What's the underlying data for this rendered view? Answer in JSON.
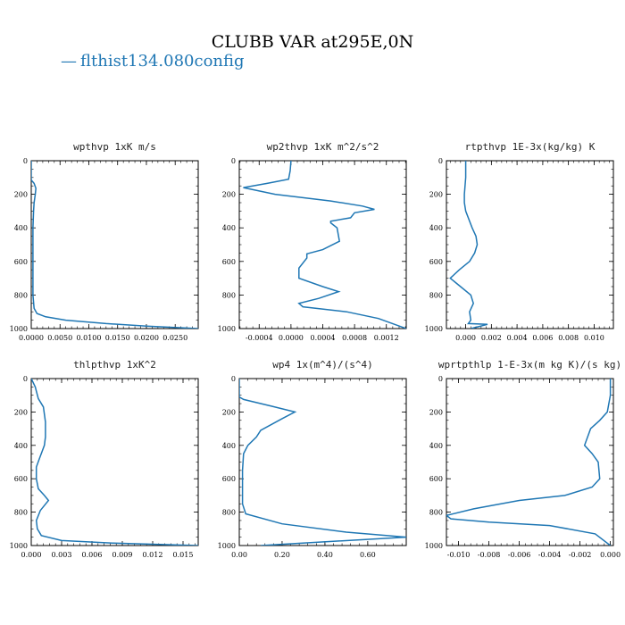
{
  "title": "CLUBB VAR at295E,0N",
  "legend": {
    "label": "flthist134.080config",
    "color": "#1f77b4"
  },
  "chart_data": [
    {
      "type": "line",
      "title": "wpthvp  1xK m/s",
      "xlim": [
        0,
        0.029
      ],
      "ylim": [
        1000,
        0
      ],
      "xticks": [
        0,
        0.005,
        0.01,
        0.015,
        0.02,
        0.025
      ],
      "xticklabels": [
        "0.0000",
        "0.0050",
        "0.0100",
        "0.0150",
        "0.0200",
        "0.0250"
      ],
      "yticks": [
        0,
        200,
        400,
        600,
        800,
        1000
      ],
      "x": [
        0,
        0,
        0.0005,
        0.0008,
        0.0007,
        0.0005,
        0.0004,
        0.0003,
        0.0003,
        0.0003,
        0.0003,
        0.0003,
        0.0005,
        0.001,
        0.0025,
        0.006,
        0.013,
        0.02,
        0.029
      ],
      "y": [
        0,
        115,
        135,
        165,
        200,
        250,
        300,
        400,
        500,
        600,
        700,
        800,
        880,
        910,
        930,
        950,
        970,
        985,
        1000
      ]
    },
    {
      "type": "line",
      "title": "wp2thvp  1xK m^2/s^2",
      "xlim": [
        -0.00065,
        0.00145
      ],
      "ylim": [
        1000,
        0
      ],
      "xticks": [
        -0.0004,
        0,
        0.0004,
        0.0008,
        0.0012
      ],
      "xticklabels": [
        "-0.0004",
        "0.0000",
        "0.0004",
        "0.0008",
        "0.0012"
      ],
      "yticks": [
        0,
        200,
        400,
        600,
        800,
        1000
      ],
      "x": [
        0,
        -1e-05,
        -3e-05,
        -0.0003,
        -0.0006,
        -0.0002,
        0.0005,
        0.0009,
        0.00105,
        0.0008,
        0.00075,
        0.0005,
        0.0005,
        0.00058,
        0.00061,
        0.0004,
        0.0002,
        0.0002,
        0.0001,
        0.0001,
        0.0004,
        0.0006,
        0.00035,
        0.0001,
        0.00015,
        0.0007,
        0.0011,
        0.00145
      ],
      "y": [
        0,
        60,
        110,
        135,
        160,
        200,
        240,
        270,
        290,
        310,
        340,
        360,
        370,
        400,
        480,
        530,
        555,
        580,
        640,
        700,
        750,
        780,
        820,
        850,
        870,
        900,
        940,
        1000
      ]
    },
    {
      "type": "line",
      "title": "rtpthvp  1E-3x(kg/kg) K",
      "xlim": [
        -0.0015,
        0.0115
      ],
      "ylim": [
        1000,
        0
      ],
      "xticks": [
        0,
        0.002,
        0.004,
        0.006,
        0.008,
        0.01
      ],
      "xticklabels": [
        "0.000",
        "0.002",
        "0.004",
        "0.006",
        "0.008",
        "0.010"
      ],
      "yticks": [
        0,
        200,
        400,
        600,
        800,
        1000
      ],
      "x": [
        0,
        0,
        -0.0001,
        -0.0001,
        0,
        0.0005,
        0.0008,
        0.0009,
        0.0007,
        0.0003,
        -0.0005,
        -0.0012,
        -0.0004,
        0.0004,
        0.0006,
        0.0003,
        0.0004,
        0.0002,
        0.0017,
        0.0004
      ],
      "y": [
        0,
        100,
        200,
        250,
        300,
        400,
        450,
        500,
        550,
        600,
        650,
        700,
        750,
        800,
        850,
        900,
        950,
        970,
        975,
        1000
      ]
    },
    {
      "type": "line",
      "title": "thlpthvp  1xK^2",
      "xlim": [
        0,
        0.0165
      ],
      "ylim": [
        1000,
        0
      ],
      "xticks": [
        0,
        0.003,
        0.006,
        0.009,
        0.012,
        0.015
      ],
      "xticklabels": [
        "0.000",
        "0.003",
        "0.006",
        "0.009",
        "0.012",
        "0.015"
      ],
      "yticks": [
        0,
        200,
        400,
        600,
        800,
        1000
      ],
      "x": [
        0,
        0.0004,
        0.0007,
        0.0012,
        0.0014,
        0.0014,
        0.0013,
        0.0008,
        0.0005,
        0.0005,
        0.0007,
        0.0013,
        0.0017,
        0.0009,
        0.0005,
        0.0006,
        0.001,
        0.003,
        0.008,
        0.0165
      ],
      "y": [
        0,
        50,
        120,
        170,
        260,
        350,
        400,
        480,
        530,
        600,
        660,
        700,
        730,
        790,
        850,
        900,
        940,
        970,
        985,
        1000
      ]
    },
    {
      "type": "line",
      "title": "wp4  1x(m^4)/(s^4)",
      "xlim": [
        0,
        0.78
      ],
      "ylim": [
        1000,
        0
      ],
      "xticks": [
        0,
        0.2,
        0.4,
        0.6
      ],
      "xticklabels": [
        "0.00",
        "0.20",
        "0.40",
        "0.60"
      ],
      "yticks": [
        0,
        200,
        400,
        600,
        800,
        1000
      ],
      "x": [
        0,
        0,
        0,
        0.02,
        0.15,
        0.26,
        0.2,
        0.1,
        0.08,
        0.04,
        0.02,
        0.015,
        0.015,
        0.015,
        0.03,
        0.2,
        0.5,
        0.78,
        0.1
      ],
      "y": [
        0,
        90,
        110,
        125,
        165,
        200,
        240,
        310,
        350,
        400,
        450,
        550,
        650,
        750,
        810,
        870,
        920,
        950,
        1000
      ]
    },
    {
      "type": "line",
      "title": "wprtpthlp  1-E-3x(m kg K)/(s kg)",
      "xlim": [
        -0.0108,
        0.0002
      ],
      "ylim": [
        1000,
        0
      ],
      "xticks": [
        -0.01,
        -0.008,
        -0.006,
        -0.004,
        -0.002,
        0
      ],
      "xticklabels": [
        "-0.010",
        "-0.008",
        "-0.006",
        "-0.004",
        "-0.002",
        "0.000"
      ],
      "yticks": [
        0,
        200,
        400,
        600,
        800,
        1000
      ],
      "x": [
        0,
        0,
        -0.0002,
        -0.0007,
        -0.0013,
        -0.0017,
        -0.0012,
        -0.0008,
        -0.0007,
        -0.0012,
        -0.003,
        -0.006,
        -0.009,
        -0.0108,
        -0.0105,
        -0.008,
        -0.004,
        -0.001,
        0
      ],
      "y": [
        0,
        100,
        200,
        250,
        300,
        400,
        450,
        500,
        600,
        650,
        700,
        730,
        780,
        820,
        840,
        860,
        880,
        930,
        1000
      ]
    }
  ]
}
